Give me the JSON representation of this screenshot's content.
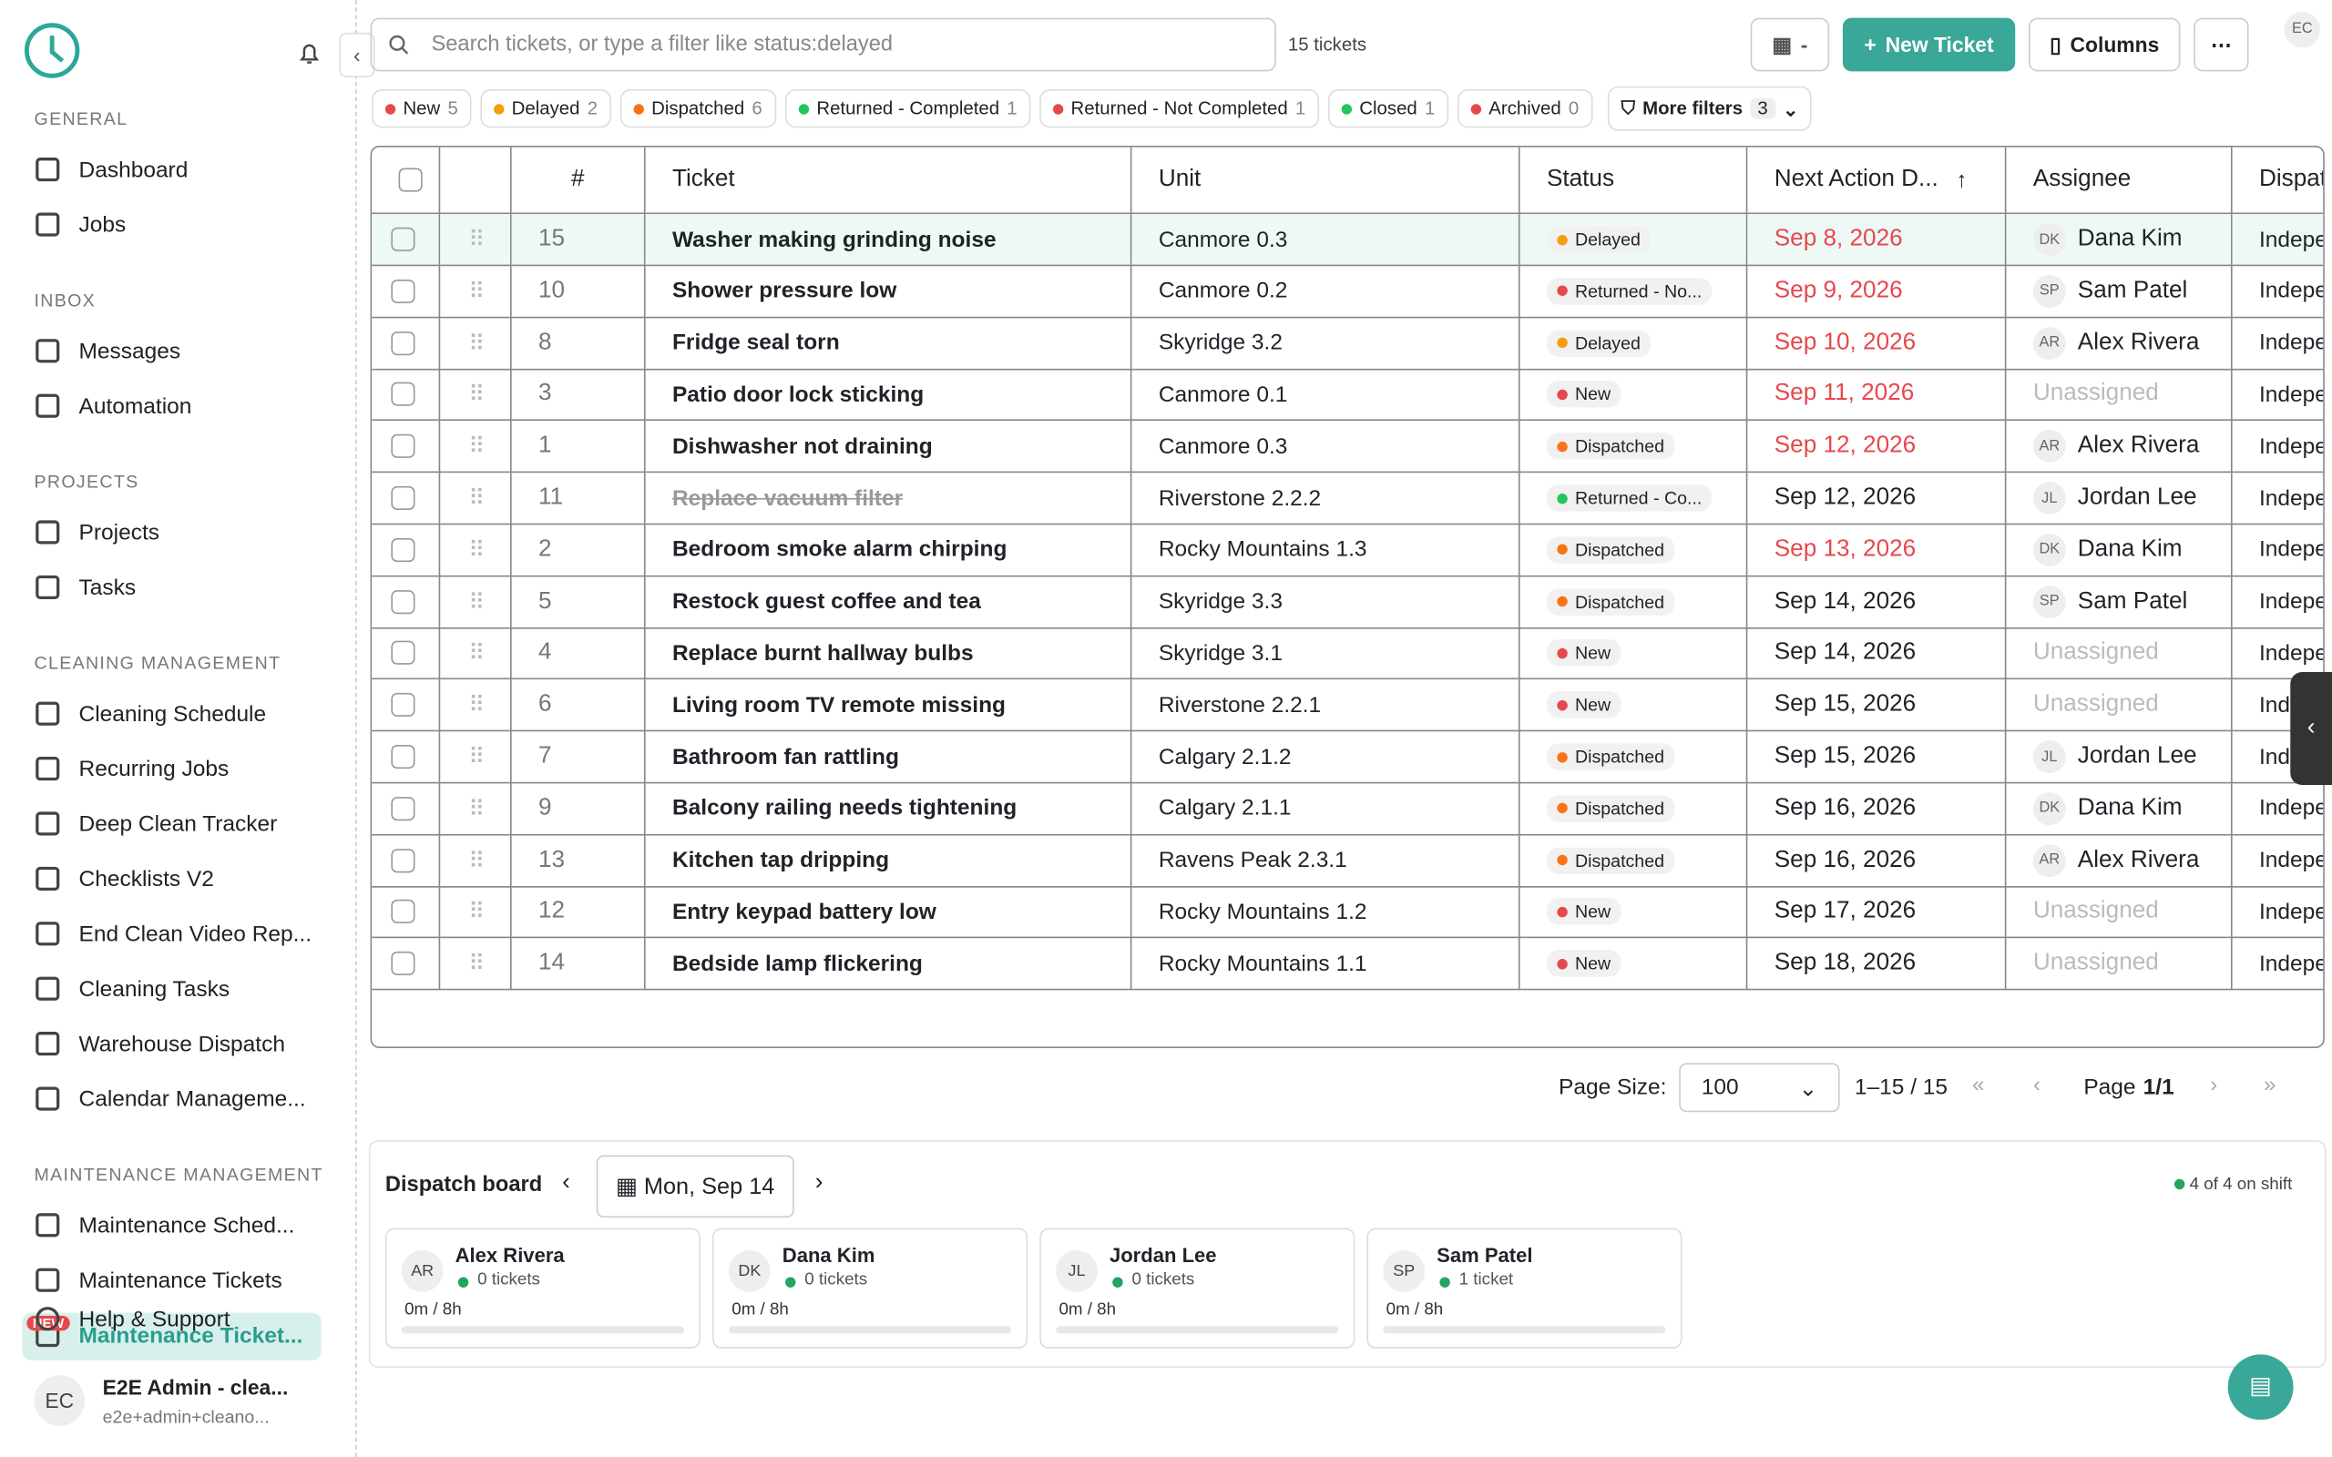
{
  "sidebar": {
    "sections": [
      {
        "title": "GENERAL",
        "items": [
          "Dashboard",
          "Jobs"
        ]
      },
      {
        "title": "INBOX",
        "items": [
          "Messages",
          "Automation"
        ]
      },
      {
        "title": "PROJECTS",
        "items": [
          "Projects",
          "Tasks"
        ]
      },
      {
        "title": "CLEANING MANAGEMENT",
        "items": [
          "Cleaning Schedule",
          "Recurring Jobs",
          "Deep Clean Tracker",
          "Checklists V2",
          "End Clean Video Rep...",
          "Cleaning Tasks",
          "Warehouse Dispatch",
          "Calendar Manageme..."
        ]
      },
      {
        "title": "MAINTENANCE MANAGEMENT",
        "items": [
          "Maintenance Sched...",
          "Maintenance Tickets",
          "Maintenance Ticket..."
        ]
      }
    ],
    "badge": "NEW",
    "help": "Help & Support",
    "user": {
      "initials": "EC",
      "name": "E2E Admin - clea...",
      "email": "e2e+admin+cleano..."
    }
  },
  "toolbar": {
    "search": "Search tickets, or type a filter like status:delayed",
    "count": "15 tickets",
    "date": "-",
    "new_ticket": "New Ticket",
    "columns": "Columns",
    "avatar": "EC"
  },
  "filters": [
    {
      "label": "New",
      "count": 5,
      "color": "#e5484d"
    },
    {
      "label": "Delayed",
      "count": 2,
      "color": "#f59e0b"
    },
    {
      "label": "Dispatched",
      "count": 6,
      "color": "#f97316"
    },
    {
      "label": "Returned - Completed",
      "count": 1,
      "color": "#22c55e"
    },
    {
      "label": "Returned - Not Completed",
      "count": 1,
      "color": "#e5484d"
    },
    {
      "label": "Closed",
      "count": 1,
      "color": "#22c55e"
    },
    {
      "label": "Archived",
      "count": 0,
      "color": "#e5484d"
    }
  ],
  "more_filters": {
    "label": "More filters",
    "count": 3
  },
  "table": {
    "columns": [
      "#",
      "Ticket",
      "Unit",
      "Status",
      "Next Action D...",
      "Assignee",
      "Dispat"
    ],
    "rows": [
      {
        "num": 15,
        "ticket": "Washer making grinding noise",
        "unit": "Canmore 0.3",
        "status": "Delayed",
        "status_color": "#f59e0b",
        "date": "Sep 8, 2026",
        "overdue": true,
        "initials": "DK",
        "assignee": "Dana Kim",
        "dispatch": "Indepe"
      },
      {
        "num": 10,
        "ticket": "Shower pressure low",
        "unit": "Canmore 0.2",
        "status": "Returned - No...",
        "status_color": "#e5484d",
        "date": "Sep 9, 2026",
        "overdue": true,
        "initials": "SP",
        "assignee": "Sam Patel",
        "dispatch": "Indepe"
      },
      {
        "num": 8,
        "ticket": "Fridge seal torn",
        "unit": "Skyridge 3.2",
        "status": "Delayed",
        "status_color": "#f59e0b",
        "date": "Sep 10, 2026",
        "overdue": true,
        "initials": "AR",
        "assignee": "Alex Rivera",
        "dispatch": "Indepe"
      },
      {
        "num": 3,
        "ticket": "Patio door lock sticking",
        "unit": "Canmore 0.1",
        "status": "New",
        "status_color": "#e5484d",
        "date": "Sep 11, 2026",
        "overdue": true,
        "initials": null,
        "assignee": "Unassigned",
        "dispatch": "Indepe"
      },
      {
        "num": 1,
        "ticket": "Dishwasher not draining",
        "unit": "Canmore 0.3",
        "status": "Dispatched",
        "status_color": "#f97316",
        "date": "Sep 12, 2026",
        "overdue": true,
        "initials": "AR",
        "assignee": "Alex Rivera",
        "dispatch": "Indepe"
      },
      {
        "num": 11,
        "ticket": "Replace vacuum filter",
        "unit": "Riverstone 2.2.2",
        "status": "Returned - Co...",
        "status_color": "#22c55e",
        "date": "Sep 12, 2026",
        "overdue": false,
        "struck": true,
        "initials": "JL",
        "assignee": "Jordan Lee",
        "dispatch": "Indepe"
      },
      {
        "num": 2,
        "ticket": "Bedroom smoke alarm chirping",
        "unit": "Rocky Mountains 1.3",
        "status": "Dispatched",
        "status_color": "#f97316",
        "date": "Sep 13, 2026",
        "overdue": true,
        "initials": "DK",
        "assignee": "Dana Kim",
        "dispatch": "Indepe"
      },
      {
        "num": 5,
        "ticket": "Restock guest coffee and tea",
        "unit": "Skyridge 3.3",
        "status": "Dispatched",
        "status_color": "#f97316",
        "date": "Sep 14, 2026",
        "overdue": false,
        "initials": "SP",
        "assignee": "Sam Patel",
        "dispatch": "Indepe"
      },
      {
        "num": 4,
        "ticket": "Replace burnt hallway bulbs",
        "unit": "Skyridge 3.1",
        "status": "New",
        "status_color": "#e5484d",
        "date": "Sep 14, 2026",
        "overdue": false,
        "initials": null,
        "assignee": "Unassigned",
        "dispatch": "Indepe"
      },
      {
        "num": 6,
        "ticket": "Living room TV remote missing",
        "unit": "Riverstone 2.2.1",
        "status": "New",
        "status_color": "#e5484d",
        "date": "Sep 15, 2026",
        "overdue": false,
        "initials": null,
        "assignee": "Unassigned",
        "dispatch": "Indepe"
      },
      {
        "num": 7,
        "ticket": "Bathroom fan rattling",
        "unit": "Calgary 2.1.2",
        "status": "Dispatched",
        "status_color": "#f97316",
        "date": "Sep 15, 2026",
        "overdue": false,
        "initials": "JL",
        "assignee": "Jordan Lee",
        "dispatch": "Indepe"
      },
      {
        "num": 9,
        "ticket": "Balcony railing needs tightening",
        "unit": "Calgary 2.1.1",
        "status": "Dispatched",
        "status_color": "#f97316",
        "date": "Sep 16, 2026",
        "overdue": false,
        "initials": "DK",
        "assignee": "Dana Kim",
        "dispatch": "Indepe"
      },
      {
        "num": 13,
        "ticket": "Kitchen tap dripping",
        "unit": "Ravens Peak 2.3.1",
        "status": "Dispatched",
        "status_color": "#f97316",
        "date": "Sep 16, 2026",
        "overdue": false,
        "initials": "AR",
        "assignee": "Alex Rivera",
        "dispatch": "Indepe"
      },
      {
        "num": 12,
        "ticket": "Entry keypad battery low",
        "unit": "Rocky Mountains 1.2",
        "status": "New",
        "status_color": "#e5484d",
        "date": "Sep 17, 2026",
        "overdue": false,
        "initials": null,
        "assignee": "Unassigned",
        "dispatch": "Indepe"
      },
      {
        "num": 14,
        "ticket": "Bedside lamp flickering",
        "unit": "Rocky Mountains 1.1",
        "status": "New",
        "status_color": "#e5484d",
        "date": "Sep 18, 2026",
        "overdue": false,
        "initials": null,
        "assignee": "Unassigned",
        "dispatch": "Indepe"
      }
    ]
  },
  "pagination": {
    "size_label": "Page Size:",
    "size": "100",
    "range": "1–15 / 15",
    "page_label": "Page",
    "page": "1/1"
  },
  "dispatch": {
    "title": "Dispatch board",
    "date": "Mon, Sep 14",
    "shift": "4 of 4 on shift",
    "cards": [
      {
        "initials": "AR",
        "name": "Alex Rivera",
        "tickets": "0 tickets",
        "hours": "0m / 8h"
      },
      {
        "initials": "DK",
        "name": "Dana Kim",
        "tickets": "0 tickets",
        "hours": "0m / 8h"
      },
      {
        "initials": "JL",
        "name": "Jordan Lee",
        "tickets": "0 tickets",
        "hours": "0m / 8h"
      },
      {
        "initials": "SP",
        "name": "Sam Patel",
        "tickets": "1 ticket",
        "hours": "0m / 8h"
      }
    ]
  }
}
